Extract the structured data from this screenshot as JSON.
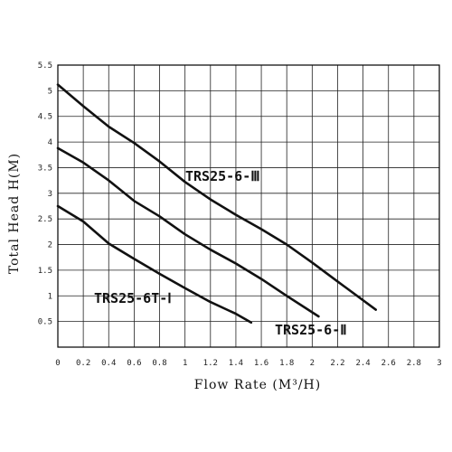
{
  "chart_data": {
    "type": "line",
    "title": "",
    "xlabel": "Flow Rate (M³/H)",
    "ylabel": "Total Head H(M)",
    "xlim": [
      0,
      3
    ],
    "ylim": [
      0,
      5.5
    ],
    "x_ticks": [
      "0",
      "0.2",
      "0.4",
      "0.6",
      "0.8",
      "1",
      "1.2",
      "1.4",
      "1.6",
      "1.8",
      "2",
      "2.2",
      "2.4",
      "2.6",
      "2.8",
      "3"
    ],
    "y_ticks": [
      "0.5",
      "1",
      "1.5",
      "2",
      "2.5",
      "3",
      "3.5",
      "4",
      "4.5",
      "5",
      "5.5"
    ],
    "grid": true,
    "series": [
      {
        "name": "TRS25-6-Ⅲ",
        "x": [
          0,
          0.2,
          0.4,
          0.6,
          0.8,
          1.0,
          1.2,
          1.4,
          1.6,
          1.8,
          2.0,
          2.2,
          2.5
        ],
        "y": [
          5.12,
          4.7,
          4.3,
          3.98,
          3.62,
          3.22,
          2.88,
          2.58,
          2.3,
          2.0,
          1.65,
          1.28,
          0.73
        ]
      },
      {
        "name": "TRS25-6-Ⅱ",
        "x": [
          0,
          0.2,
          0.4,
          0.6,
          0.8,
          1.0,
          1.2,
          1.4,
          1.6,
          1.8,
          2.05
        ],
        "y": [
          3.88,
          3.6,
          3.25,
          2.85,
          2.55,
          2.2,
          1.9,
          1.63,
          1.33,
          1.0,
          0.6
        ]
      },
      {
        "name": "TRS25-6T-Ⅰ",
        "x": [
          0,
          0.2,
          0.4,
          0.6,
          0.8,
          1.0,
          1.2,
          1.4,
          1.52
        ],
        "y": [
          2.75,
          2.45,
          2.02,
          1.72,
          1.43,
          1.15,
          0.88,
          0.65,
          0.48
        ]
      }
    ]
  }
}
